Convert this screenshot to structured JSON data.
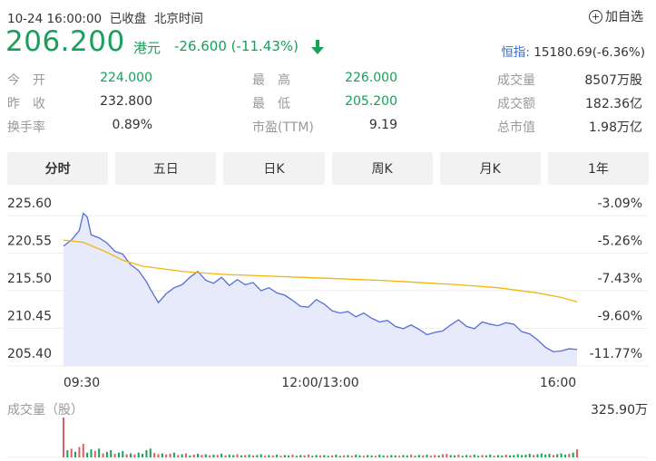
{
  "header": {
    "datetime": "10-24 16:00:00",
    "status": "已收盘",
    "timezone": "北京时间",
    "add_watchlist": "加自选",
    "plus_icon": "plus-circle-icon"
  },
  "quote": {
    "price": "206.200",
    "currency": "港元",
    "change": "-26.600 (-11.43%)",
    "direction_icon": "arrow-down-icon",
    "color": "#18a05a"
  },
  "index": {
    "label": "恒指:",
    "value": "15180.69(-6.36%)"
  },
  "stats": [
    {
      "label": "今　开",
      "value": "224.000",
      "green": true
    },
    {
      "label": "最　高",
      "value": "226.000",
      "green": true
    },
    {
      "label": "成交量",
      "value": "8507万股",
      "green": false
    },
    {
      "label": "昨　收",
      "value": "232.800",
      "green": false
    },
    {
      "label": "最　低",
      "value": "205.200",
      "green": true
    },
    {
      "label": "成交额",
      "value": "182.36亿",
      "green": false
    },
    {
      "label": "换手率",
      "value": "0.89%",
      "green": false
    },
    {
      "label": "市盈(TTM)",
      "value": "9.19",
      "green": false
    },
    {
      "label": "总市值",
      "value": "1.98万亿",
      "green": false
    }
  ],
  "tabs": [
    {
      "label": "分时",
      "active": true
    },
    {
      "label": "五日",
      "active": false
    },
    {
      "label": "日K",
      "active": false
    },
    {
      "label": "周K",
      "active": false
    },
    {
      "label": "月K",
      "active": false
    },
    {
      "label": "1年",
      "active": false
    }
  ],
  "chart_data": {
    "type": "line",
    "y_left_ticks": [
      "225.60",
      "220.55",
      "215.50",
      "210.45",
      "205.40"
    ],
    "y_right_ticks": [
      "-3.09%",
      "-5.26%",
      "-7.43%",
      "-9.60%",
      "-11.77%"
    ],
    "x_ticks": [
      "09:30",
      "12:00/13:00",
      "16:00"
    ],
    "ylim": [
      205.4,
      225.6
    ],
    "colors": {
      "price": "#5470d6",
      "avg": "#f2b50c",
      "fill": "#e6eafa",
      "vol_up": "#e05d5d",
      "vol_down": "#18a05a"
    },
    "price": [
      [
        0,
        219.8
      ],
      [
        2,
        220.6
      ],
      [
        4,
        221.9
      ],
      [
        5,
        224.2
      ],
      [
        6,
        223.7
      ],
      [
        7,
        221.3
      ],
      [
        9,
        220.9
      ],
      [
        11,
        220.2
      ],
      [
        13,
        219.1
      ],
      [
        15,
        218.7
      ],
      [
        17,
        217.3
      ],
      [
        19,
        216.5
      ],
      [
        21,
        215.0
      ],
      [
        22,
        214.0
      ],
      [
        24,
        212.2
      ],
      [
        26,
        213.4
      ],
      [
        28,
        214.2
      ],
      [
        30,
        214.6
      ],
      [
        32,
        215.6
      ],
      [
        34,
        216.4
      ],
      [
        36,
        215.2
      ],
      [
        38,
        214.8
      ],
      [
        40,
        215.6
      ],
      [
        42,
        214.5
      ],
      [
        44,
        215.3
      ],
      [
        46,
        214.6
      ],
      [
        48,
        214.9
      ],
      [
        50,
        213.8
      ],
      [
        52,
        214.2
      ],
      [
        54,
        213.5
      ],
      [
        56,
        213.2
      ],
      [
        58,
        212.5
      ],
      [
        60,
        211.7
      ],
      [
        62,
        211.6
      ],
      [
        64,
        212.6
      ],
      [
        66,
        212.0
      ],
      [
        68,
        211.1
      ],
      [
        70,
        210.8
      ],
      [
        72,
        211.0
      ],
      [
        74,
        210.3
      ],
      [
        76,
        210.8
      ],
      [
        78,
        210.1
      ],
      [
        80,
        209.6
      ],
      [
        82,
        209.8
      ],
      [
        84,
        209.0
      ],
      [
        86,
        208.7
      ],
      [
        88,
        209.2
      ],
      [
        90,
        208.6
      ],
      [
        92,
        207.9
      ],
      [
        94,
        208.2
      ],
      [
        96,
        208.4
      ],
      [
        98,
        209.2
      ],
      [
        100,
        209.9
      ],
      [
        102,
        209.0
      ],
      [
        104,
        208.7
      ],
      [
        106,
        209.6
      ],
      [
        108,
        209.3
      ],
      [
        110,
        209.1
      ],
      [
        112,
        209.5
      ],
      [
        114,
        209.3
      ],
      [
        116,
        208.3
      ],
      [
        118,
        208.0
      ],
      [
        120,
        207.2
      ],
      [
        122,
        206.2
      ],
      [
        124,
        205.6
      ],
      [
        126,
        205.7
      ],
      [
        128,
        206.0
      ],
      [
        130,
        205.9
      ]
    ],
    "avg": [
      [
        0,
        220.6
      ],
      [
        5,
        220.3
      ],
      [
        10,
        219.2
      ],
      [
        15,
        217.9
      ],
      [
        20,
        217.1
      ],
      [
        30,
        216.4
      ],
      [
        40,
        216.0
      ],
      [
        50,
        215.8
      ],
      [
        60,
        215.6
      ],
      [
        70,
        215.4
      ],
      [
        80,
        215.2
      ],
      [
        90,
        214.9
      ],
      [
        100,
        214.6
      ],
      [
        110,
        214.2
      ],
      [
        120,
        213.5
      ],
      [
        126,
        212.9
      ],
      [
        130,
        212.3
      ]
    ],
    "x_range": [
      0,
      130
    ],
    "volume_label": "成交量（股）",
    "volume_max": "325.90万",
    "volume": [
      [
        0,
        100,
        "up"
      ],
      [
        1,
        18,
        "down"
      ],
      [
        2,
        22,
        "up"
      ],
      [
        3,
        14,
        "down"
      ],
      [
        4,
        26,
        "up"
      ],
      [
        5,
        34,
        "up"
      ],
      [
        6,
        12,
        "down"
      ],
      [
        7,
        20,
        "down"
      ],
      [
        8,
        16,
        "up"
      ],
      [
        9,
        22,
        "down"
      ],
      [
        10,
        10,
        "up"
      ],
      [
        11,
        14,
        "down"
      ],
      [
        12,
        18,
        "down"
      ],
      [
        13,
        9,
        "up"
      ],
      [
        14,
        12,
        "down"
      ],
      [
        15,
        16,
        "down"
      ],
      [
        16,
        8,
        "up"
      ],
      [
        17,
        10,
        "down"
      ],
      [
        18,
        7,
        "up"
      ],
      [
        19,
        12,
        "down"
      ],
      [
        20,
        9,
        "down"
      ],
      [
        21,
        18,
        "down"
      ],
      [
        22,
        22,
        "down"
      ],
      [
        23,
        11,
        "up"
      ],
      [
        24,
        8,
        "up"
      ],
      [
        25,
        10,
        "down"
      ],
      [
        26,
        7,
        "up"
      ],
      [
        27,
        9,
        "up"
      ],
      [
        28,
        12,
        "down"
      ],
      [
        29,
        6,
        "up"
      ],
      [
        30,
        8,
        "down"
      ],
      [
        31,
        10,
        "up"
      ],
      [
        32,
        5,
        "down"
      ],
      [
        33,
        7,
        "up"
      ],
      [
        34,
        9,
        "down"
      ],
      [
        35,
        6,
        "up"
      ],
      [
        36,
        8,
        "down"
      ],
      [
        37,
        5,
        "up"
      ],
      [
        38,
        7,
        "down"
      ],
      [
        39,
        6,
        "up"
      ],
      [
        40,
        9,
        "down"
      ],
      [
        41,
        5,
        "up"
      ],
      [
        42,
        7,
        "down"
      ],
      [
        43,
        6,
        "down"
      ],
      [
        44,
        8,
        "up"
      ],
      [
        45,
        5,
        "down"
      ],
      [
        46,
        6,
        "up"
      ],
      [
        47,
        7,
        "down"
      ],
      [
        48,
        5,
        "up"
      ],
      [
        49,
        6,
        "down"
      ],
      [
        50,
        8,
        "down"
      ],
      [
        51,
        4,
        "up"
      ],
      [
        52,
        6,
        "down"
      ],
      [
        53,
        5,
        "up"
      ],
      [
        54,
        7,
        "down"
      ],
      [
        55,
        4,
        "up"
      ],
      [
        56,
        6,
        "down"
      ],
      [
        57,
        5,
        "down"
      ],
      [
        58,
        7,
        "up"
      ],
      [
        59,
        4,
        "down"
      ],
      [
        60,
        6,
        "down"
      ],
      [
        61,
        5,
        "up"
      ],
      [
        62,
        7,
        "up"
      ],
      [
        63,
        4,
        "down"
      ],
      [
        64,
        6,
        "down"
      ],
      [
        65,
        5,
        "up"
      ],
      [
        66,
        6,
        "down"
      ],
      [
        67,
        4,
        "down"
      ],
      [
        68,
        5,
        "up"
      ],
      [
        69,
        7,
        "down"
      ],
      [
        70,
        4,
        "down"
      ],
      [
        71,
        5,
        "up"
      ],
      [
        72,
        6,
        "down"
      ],
      [
        73,
        4,
        "up"
      ],
      [
        74,
        7,
        "down"
      ],
      [
        75,
        5,
        "down"
      ],
      [
        76,
        4,
        "up"
      ],
      [
        77,
        6,
        "down"
      ],
      [
        78,
        5,
        "down"
      ],
      [
        79,
        4,
        "up"
      ],
      [
        80,
        7,
        "down"
      ],
      [
        81,
        5,
        "down"
      ],
      [
        82,
        4,
        "up"
      ],
      [
        83,
        6,
        "down"
      ],
      [
        84,
        5,
        "down"
      ],
      [
        85,
        4,
        "up"
      ],
      [
        86,
        6,
        "down"
      ],
      [
        87,
        5,
        "down"
      ],
      [
        88,
        7,
        "up"
      ],
      [
        89,
        4,
        "down"
      ],
      [
        90,
        6,
        "down"
      ],
      [
        91,
        5,
        "up"
      ],
      [
        92,
        7,
        "down"
      ],
      [
        93,
        4,
        "up"
      ],
      [
        94,
        6,
        "up"
      ],
      [
        95,
        5,
        "down"
      ],
      [
        96,
        8,
        "up"
      ],
      [
        97,
        9,
        "up"
      ],
      [
        98,
        6,
        "down"
      ],
      [
        99,
        5,
        "down"
      ],
      [
        100,
        7,
        "up"
      ],
      [
        101,
        4,
        "down"
      ],
      [
        102,
        6,
        "down"
      ],
      [
        103,
        5,
        "up"
      ],
      [
        104,
        7,
        "down"
      ],
      [
        105,
        4,
        "down"
      ],
      [
        106,
        6,
        "up"
      ],
      [
        107,
        5,
        "down"
      ],
      [
        108,
        7,
        "down"
      ],
      [
        109,
        4,
        "up"
      ],
      [
        110,
        6,
        "down"
      ],
      [
        111,
        5,
        "down"
      ],
      [
        112,
        7,
        "up"
      ],
      [
        113,
        5,
        "down"
      ],
      [
        114,
        6,
        "down"
      ],
      [
        115,
        8,
        "down"
      ],
      [
        116,
        6,
        "down"
      ],
      [
        117,
        7,
        "down"
      ],
      [
        118,
        9,
        "down"
      ],
      [
        119,
        6,
        "up"
      ],
      [
        120,
        8,
        "down"
      ],
      [
        121,
        10,
        "down"
      ],
      [
        122,
        7,
        "down"
      ],
      [
        123,
        9,
        "down"
      ],
      [
        124,
        6,
        "up"
      ],
      [
        125,
        8,
        "down"
      ],
      [
        126,
        10,
        "down"
      ],
      [
        127,
        7,
        "down"
      ],
      [
        128,
        9,
        "up"
      ],
      [
        129,
        12,
        "down"
      ],
      [
        130,
        20,
        "up"
      ]
    ]
  }
}
